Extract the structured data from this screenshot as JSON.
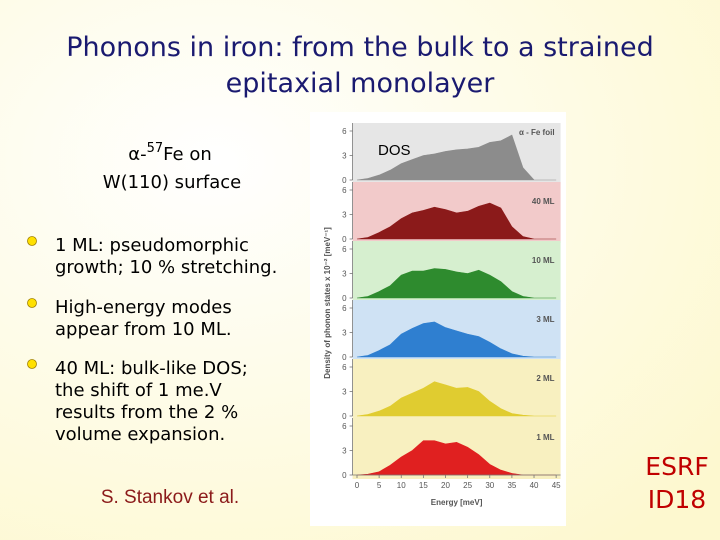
{
  "title": [
    "Phonons in iron: from the bulk to a strained",
    "epitaxial monolayer"
  ],
  "sample": {
    "prefix": "α-",
    "sup": "57",
    "suffix": "Fe on",
    "line2": "W(110) surface"
  },
  "bullets": [
    [
      "1 ML: pseudomorphic",
      "growth; 10 % stretching."
    ],
    [
      "High-energy modes",
      "appear from 10 ML."
    ],
    [
      "40 ML: bulk-like DOS;",
      "the shift of 1 me.V",
      "results from the 2 %",
      "volume expansion."
    ]
  ],
  "credit": "S. Stankov et al.",
  "logo": [
    "ESRF",
    "ID18"
  ],
  "chart_data": {
    "type": "area",
    "annotation": "DOS",
    "xlabel": "Energy [meV]",
    "ylabel": "Density of phonon states x 10⁻² [meV⁻¹]",
    "x": [
      0,
      2.5,
      5,
      7.5,
      10,
      12.5,
      15,
      17.5,
      20,
      22.5,
      25,
      27.5,
      30,
      32.5,
      35,
      37.5,
      40,
      42.5,
      45
    ],
    "xlim": [
      -1,
      46
    ],
    "xticks": [
      0,
      5,
      10,
      15,
      20,
      25,
      30,
      35,
      40,
      45
    ],
    "ylim": [
      0,
      6
    ],
    "yticks": [
      0,
      3,
      6
    ],
    "series": [
      {
        "name": "α - Fe foil",
        "color": "#8c8c8c",
        "background": "#e6e6e6",
        "values": [
          0,
          0.2,
          0.6,
          1.2,
          2,
          2.5,
          3,
          3.2,
          3.5,
          3.7,
          3.8,
          4,
          4.6,
          4.8,
          5.5,
          1.5,
          0,
          0,
          0
        ]
      },
      {
        "name": "40 ML",
        "color": "#8b1a1a",
        "background": "#f2caca",
        "values": [
          0,
          0.2,
          0.8,
          1.5,
          2.5,
          3.2,
          3.5,
          3.9,
          3.6,
          3.2,
          3.4,
          4.0,
          4.4,
          3.8,
          1.5,
          0.3,
          0,
          0,
          0
        ]
      },
      {
        "name": "10 ML",
        "color": "#2e8b2e",
        "background": "#d6efcf",
        "values": [
          0,
          0.2,
          0.8,
          1.5,
          2.8,
          3.3,
          3.3,
          3.6,
          3.5,
          3.2,
          3.0,
          3.4,
          2.8,
          2.0,
          0.8,
          0.2,
          0,
          0,
          0
        ]
      },
      {
        "name": "3 ML",
        "color": "#2f7fd0",
        "background": "#cfe2f4",
        "values": [
          0,
          0.2,
          0.8,
          1.5,
          2.8,
          3.5,
          4.1,
          4.3,
          3.6,
          3.2,
          2.8,
          2.5,
          1.8,
          1.0,
          0.4,
          0.1,
          0,
          0,
          0
        ]
      },
      {
        "name": "2 ML",
        "color": "#e0cc30",
        "background": "#f8f0c0",
        "values": [
          0,
          0.2,
          0.6,
          1.2,
          2.2,
          2.8,
          3.4,
          4.2,
          3.8,
          3.4,
          3.5,
          3.0,
          1.8,
          0.9,
          0.3,
          0.1,
          0,
          0,
          0
        ]
      },
      {
        "name": "1 ML",
        "color": "#e02020",
        "background": "#f8f0c0",
        "values": [
          0,
          0.1,
          0.4,
          1.2,
          2.2,
          3.0,
          4.2,
          4.2,
          3.8,
          4.0,
          3.4,
          2.5,
          1.3,
          0.6,
          0.2,
          0,
          0,
          0,
          0
        ]
      }
    ]
  }
}
